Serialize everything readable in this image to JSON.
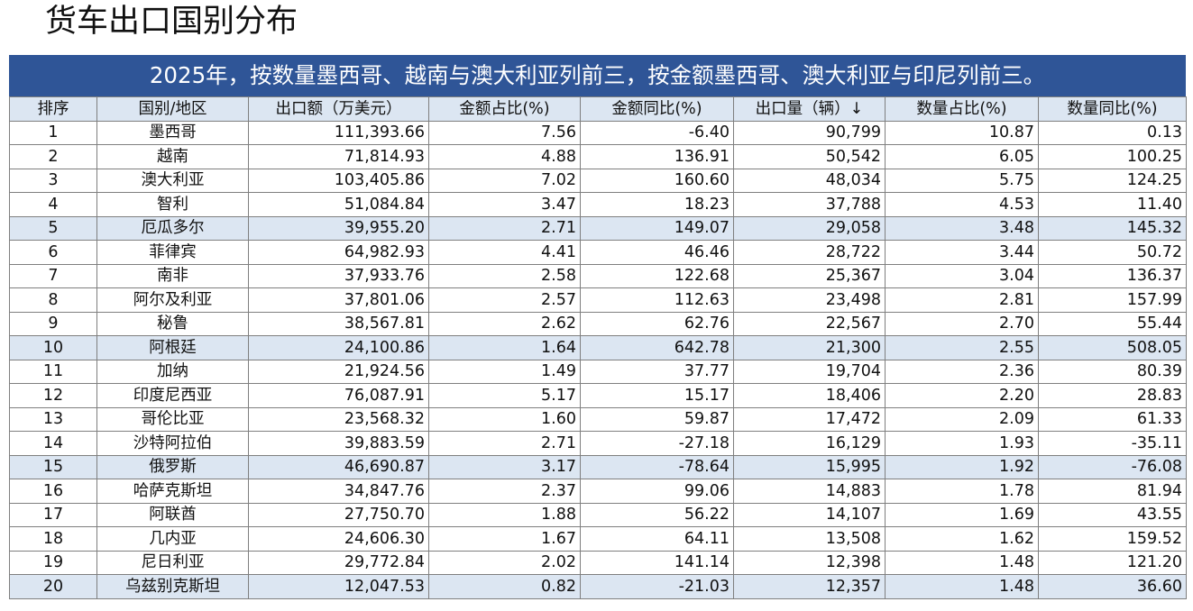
{
  "page": {
    "title": "货车出口国别分布",
    "banner": "2025年，按数量墨西哥、越南与澳大利亚列前三，按金额墨西哥、澳大利亚与印尼列前三。"
  },
  "table": {
    "columns": [
      "排序",
      "国别/地区",
      "出口额（万美元）",
      "金额占比(%)",
      "金额同比(%)",
      "出口量（辆）↓",
      "数量占比(%)",
      "数量同比(%)"
    ],
    "highlight_color": "#dce6f2",
    "rows": [
      [
        "1",
        "墨西哥",
        "111,393.66",
        "7.56",
        "-6.40",
        "90,799",
        "10.87",
        "0.13"
      ],
      [
        "2",
        "越南",
        "71,814.93",
        "4.88",
        "136.91",
        "50,542",
        "6.05",
        "100.25"
      ],
      [
        "3",
        "澳大利亚",
        "103,405.86",
        "7.02",
        "160.60",
        "48,034",
        "5.75",
        "124.25"
      ],
      [
        "4",
        "智利",
        "51,084.84",
        "3.47",
        "18.23",
        "37,788",
        "4.53",
        "11.40"
      ],
      [
        "5",
        "厄瓜多尔",
        "39,955.20",
        "2.71",
        "149.07",
        "29,058",
        "3.48",
        "145.32"
      ],
      [
        "6",
        "菲律宾",
        "64,982.93",
        "4.41",
        "46.46",
        "28,722",
        "3.44",
        "50.72"
      ],
      [
        "7",
        "南非",
        "37,933.76",
        "2.58",
        "122.68",
        "25,367",
        "3.04",
        "136.37"
      ],
      [
        "8",
        "阿尔及利亚",
        "37,801.06",
        "2.57",
        "112.63",
        "23,498",
        "2.81",
        "157.99"
      ],
      [
        "9",
        "秘鲁",
        "38,567.81",
        "2.62",
        "62.76",
        "22,567",
        "2.70",
        "55.44"
      ],
      [
        "10",
        "阿根廷",
        "24,100.86",
        "1.64",
        "642.78",
        "21,300",
        "2.55",
        "508.05"
      ],
      [
        "11",
        "加纳",
        "21,924.56",
        "1.49",
        "37.77",
        "19,704",
        "2.36",
        "80.39"
      ],
      [
        "12",
        "印度尼西亚",
        "76,087.91",
        "5.17",
        "15.17",
        "18,406",
        "2.20",
        "28.83"
      ],
      [
        "13",
        "哥伦比亚",
        "23,568.32",
        "1.60",
        "59.87",
        "17,472",
        "2.09",
        "61.33"
      ],
      [
        "14",
        "沙特阿拉伯",
        "39,883.59",
        "2.71",
        "-27.18",
        "16,129",
        "1.93",
        "-35.11"
      ],
      [
        "15",
        "俄罗斯",
        "46,690.87",
        "3.17",
        "-78.64",
        "15,995",
        "1.92",
        "-76.08"
      ],
      [
        "16",
        "哈萨克斯坦",
        "34,847.76",
        "2.37",
        "99.06",
        "14,883",
        "1.78",
        "81.94"
      ],
      [
        "17",
        "阿联酋",
        "27,750.70",
        "1.88",
        "56.22",
        "14,107",
        "1.69",
        "43.55"
      ],
      [
        "18",
        "几内亚",
        "24,606.30",
        "1.67",
        "64.11",
        "13,508",
        "1.62",
        "159.52"
      ],
      [
        "19",
        "尼日利亚",
        "29,772.84",
        "2.02",
        "141.14",
        "12,398",
        "1.48",
        "121.20"
      ],
      [
        "20",
        "乌兹别克斯坦",
        "12,047.53",
        "0.82",
        "-21.03",
        "12,357",
        "1.48",
        "36.60"
      ]
    ]
  }
}
